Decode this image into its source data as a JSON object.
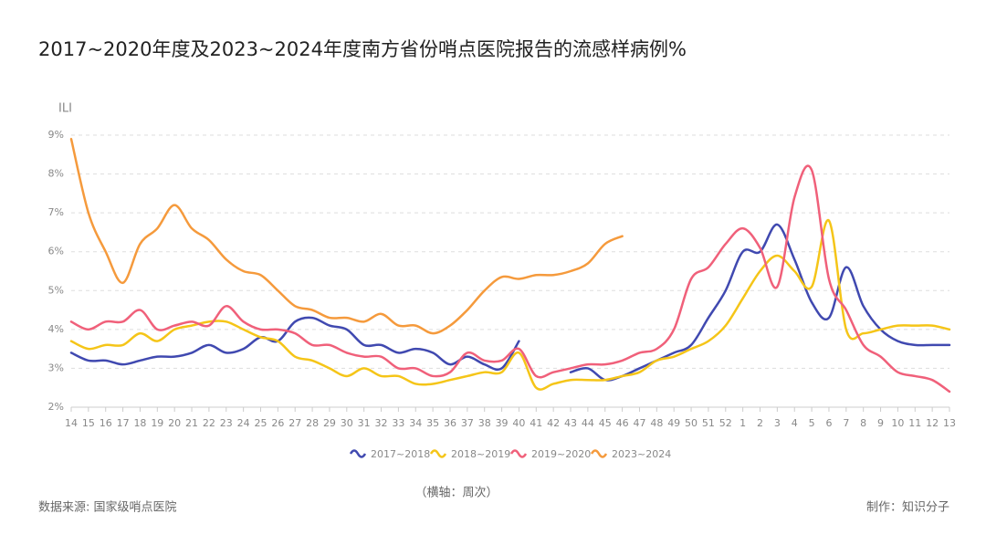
{
  "chart_data": {
    "type": "line",
    "title": "2017~2020年度及2023~2024年度南方省份哨点医院报告的流感样病例%",
    "y_label": "ILI",
    "x_label": "（横轴：周次）",
    "source": "数据来源: 国家级哨点医院",
    "credit": "制作：知识分子",
    "categories": [
      "14",
      "15",
      "16",
      "17",
      "18",
      "19",
      "20",
      "21",
      "22",
      "23",
      "24",
      "25",
      "26",
      "27",
      "28",
      "29",
      "30",
      "31",
      "32",
      "33",
      "34",
      "35",
      "36",
      "37",
      "38",
      "39",
      "40",
      "41",
      "42",
      "43",
      "44",
      "45",
      "46",
      "47",
      "48",
      "49",
      "50",
      "51",
      "52",
      "1",
      "2",
      "3",
      "4",
      "5",
      "6",
      "7",
      "8",
      "9",
      "10",
      "11",
      "12",
      "13"
    ],
    "ylim": [
      2,
      9
    ],
    "yticks": [
      {
        "value": 2,
        "label": "2%"
      },
      {
        "value": 3,
        "label": "3%"
      },
      {
        "value": 4,
        "label": "4%"
      },
      {
        "value": 5,
        "label": "5%"
      },
      {
        "value": 6,
        "label": "6%"
      },
      {
        "value": 7,
        "label": "7%"
      },
      {
        "value": 8,
        "label": "8%"
      },
      {
        "value": 9,
        "label": "9%"
      }
    ],
    "grid": true,
    "series": [
      {
        "name": "2017~2018",
        "color": "#4049b0",
        "values": [
          3.4,
          3.2,
          3.2,
          3.1,
          3.2,
          3.3,
          3.3,
          3.4,
          3.6,
          3.4,
          3.5,
          3.8,
          3.7,
          4.2,
          4.3,
          4.1,
          4.0,
          3.6,
          3.6,
          3.4,
          3.5,
          3.4,
          3.1,
          3.3,
          3.1,
          3.0,
          3.7,
          null,
          null,
          2.9,
          3.0,
          2.7,
          2.8,
          3.0,
          3.2,
          3.4,
          3.6,
          4.3,
          5.0,
          6.0,
          6.0,
          6.7,
          5.8,
          4.7,
          4.3,
          5.6,
          4.6,
          4.0,
          3.7,
          3.6,
          3.6,
          3.6
        ]
      },
      {
        "name": "2018~2019",
        "color": "#f5c518",
        "values": [
          3.7,
          3.5,
          3.6,
          3.6,
          3.9,
          3.7,
          4.0,
          4.1,
          4.2,
          4.2,
          4.0,
          3.8,
          3.7,
          3.3,
          3.2,
          3.0,
          2.8,
          3.0,
          2.8,
          2.8,
          2.6,
          2.6,
          2.7,
          2.8,
          2.9,
          2.9,
          3.4,
          2.5,
          2.6,
          2.7,
          2.7,
          2.7,
          2.8,
          2.9,
          3.2,
          3.3,
          3.5,
          3.7,
          4.1,
          4.8,
          5.5,
          5.9,
          5.5,
          5.1,
          6.8,
          4.0,
          3.9,
          4.0,
          4.1,
          4.1,
          4.1,
          4.0
        ]
      },
      {
        "name": "2019~2020",
        "color": "#f0607a",
        "values": [
          4.2,
          4.0,
          4.2,
          4.2,
          4.5,
          4.0,
          4.1,
          4.2,
          4.1,
          4.6,
          4.2,
          4.0,
          4.0,
          3.9,
          3.6,
          3.6,
          3.4,
          3.3,
          3.3,
          3.0,
          3.0,
          2.8,
          2.9,
          3.4,
          3.2,
          3.2,
          3.5,
          2.8,
          2.9,
          3.0,
          3.1,
          3.1,
          3.2,
          3.4,
          3.5,
          4.0,
          5.3,
          5.6,
          6.2,
          6.6,
          6.1,
          5.1,
          7.4,
          8.1,
          5.3,
          4.5,
          3.6,
          3.3,
          2.9,
          2.8,
          2.7,
          2.4
        ]
      },
      {
        "name": "2023~2024",
        "color": "#f59a3c",
        "values": [
          8.9,
          7.0,
          6.0,
          5.2,
          6.2,
          6.6,
          7.2,
          6.6,
          6.3,
          5.8,
          5.5,
          5.4,
          5.0,
          4.6,
          4.5,
          4.3,
          4.3,
          4.2,
          4.4,
          4.1,
          4.1,
          3.9,
          4.1,
          4.5,
          5.0,
          5.35,
          5.3,
          5.4,
          5.4,
          5.5,
          5.7,
          6.2,
          6.4,
          null,
          null,
          null,
          null,
          null,
          null,
          null,
          null,
          null,
          null,
          null,
          null,
          null,
          null,
          null,
          null,
          null,
          null,
          null
        ]
      }
    ]
  }
}
